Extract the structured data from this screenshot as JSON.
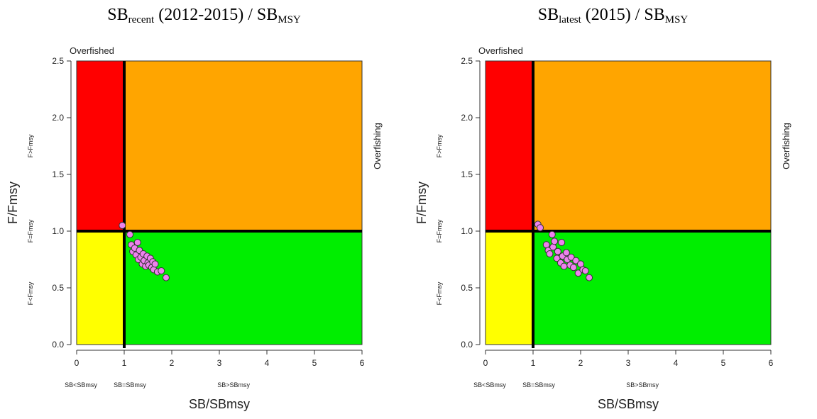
{
  "chart_data": [
    {
      "type": "scatter",
      "title": {
        "main": "SB",
        "sub": "recent",
        "rest": " (2012-2015) / SB",
        "sub2": "MSY"
      },
      "xlabel": "SB/SBmsy",
      "ylabel": "F/Fmsy",
      "xlim": [
        0,
        6
      ],
      "ylim": [
        0,
        2.5
      ],
      "x_ticks": [
        "0",
        "1",
        "2",
        "3",
        "4",
        "5",
        "6"
      ],
      "y_ticks": [
        "0.0",
        "0.5",
        "1.0",
        "1.5",
        "2.0",
        "2.5"
      ],
      "reference_lines": {
        "x": 1,
        "y": 1
      },
      "zone_colors": {
        "overfished_overfishing": "#ff0000",
        "overfishing_only": "#ffa500",
        "overfished_only": "#ffff00",
        "healthy": "#00ee00"
      },
      "labels": {
        "top_left": "Overfished",
        "right_side": "Overfishing",
        "x_low": "SB<SBmsy",
        "x_eq": "SB=SBmsy",
        "x_high": "SB>SBmsy",
        "y_high": "F>Fmsy",
        "y_eq": "F=Fmsy",
        "y_low": "F<Fmsy"
      },
      "point_color": "#ee82ee",
      "points": {
        "x": [
          0.96,
          1.12,
          1.15,
          1.18,
          1.22,
          1.25,
          1.28,
          1.3,
          1.32,
          1.35,
          1.38,
          1.4,
          1.42,
          1.45,
          1.48,
          1.5,
          1.52,
          1.55,
          1.58,
          1.6,
          1.62,
          1.65,
          1.7,
          1.78,
          1.88
        ],
        "y": [
          1.05,
          0.97,
          0.88,
          0.82,
          0.85,
          0.79,
          0.9,
          0.75,
          0.83,
          0.77,
          0.71,
          0.8,
          0.74,
          0.69,
          0.78,
          0.72,
          0.7,
          0.76,
          0.68,
          0.73,
          0.66,
          0.71,
          0.64,
          0.65,
          0.59
        ]
      }
    },
    {
      "type": "scatter",
      "title": {
        "main": "SB",
        "sub": "latest",
        "rest": " (2015) / SB",
        "sub2": "MSY"
      },
      "xlabel": "SB/SBmsy",
      "ylabel": "F/Fmsy",
      "xlim": [
        0,
        6
      ],
      "ylim": [
        0,
        2.5
      ],
      "x_ticks": [
        "0",
        "1",
        "2",
        "3",
        "4",
        "5",
        "6"
      ],
      "y_ticks": [
        "0.0",
        "0.5",
        "1.0",
        "1.5",
        "2.0",
        "2.5"
      ],
      "reference_lines": {
        "x": 1,
        "y": 1
      },
      "zone_colors": {
        "overfished_overfishing": "#ff0000",
        "overfishing_only": "#ffa500",
        "overfished_only": "#ffff00",
        "healthy": "#00ee00"
      },
      "labels": {
        "top_left": "Overfished",
        "right_side": "Overfishing",
        "x_low": "SB<SBmsy",
        "x_eq": "SB=SBmsy",
        "x_high": "SB>SBmsy",
        "y_high": "F>Fmsy",
        "y_eq": "F=Fmsy",
        "y_low": "F<Fmsy"
      },
      "point_color": "#ee82ee",
      "points": {
        "x": [
          1.1,
          1.15,
          1.28,
          1.32,
          1.35,
          1.4,
          1.42,
          1.45,
          1.5,
          1.52,
          1.58,
          1.6,
          1.62,
          1.65,
          1.7,
          1.72,
          1.78,
          1.8,
          1.85,
          1.9,
          1.95,
          2.0,
          2.05,
          2.1,
          2.18
        ],
        "y": [
          1.06,
          1.03,
          0.88,
          0.83,
          0.8,
          0.97,
          0.86,
          0.91,
          0.76,
          0.82,
          0.72,
          0.9,
          0.78,
          0.69,
          0.81,
          0.75,
          0.7,
          0.77,
          0.68,
          0.74,
          0.63,
          0.71,
          0.66,
          0.65,
          0.59
        ]
      }
    }
  ]
}
